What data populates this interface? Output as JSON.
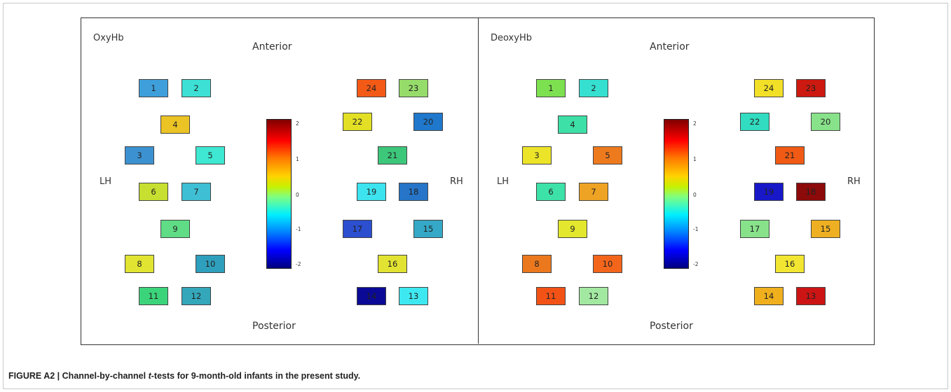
{
  "caption": {
    "prefix": "FIGURE A2 | Channel-by-channel ",
    "italic": "t",
    "suffix": "-tests for 9-month-old infants in the present study."
  },
  "labels": {
    "anterior": "Anterior",
    "posterior": "Posterior",
    "left_hemisphere": "LH",
    "right_hemisphere": "RH"
  },
  "colorbar": {
    "ticks": [
      "2",
      "1",
      "0",
      "-1",
      "-2"
    ],
    "range": [
      -2,
      2
    ],
    "colormap": "jet"
  },
  "panels": [
    {
      "title": "OxyHb",
      "channels": [
        {
          "id": "1",
          "color": "#3f9fdb"
        },
        {
          "id": "2",
          "color": "#3de0d4"
        },
        {
          "id": "4",
          "color": "#ecc324"
        },
        {
          "id": "3",
          "color": "#3c92d1"
        },
        {
          "id": "5",
          "color": "#3ee8d2"
        },
        {
          "id": "6",
          "color": "#c6df30"
        },
        {
          "id": "7",
          "color": "#3fbfd4"
        },
        {
          "id": "9",
          "color": "#5fdc85"
        },
        {
          "id": "8",
          "color": "#e1e431"
        },
        {
          "id": "10",
          "color": "#2e9fbc"
        },
        {
          "id": "11",
          "color": "#3cd47a"
        },
        {
          "id": "12",
          "color": "#34a7bb"
        },
        {
          "id": "24",
          "color": "#f35a16"
        },
        {
          "id": "23",
          "color": "#96dc6a"
        },
        {
          "id": "22",
          "color": "#e2df25"
        },
        {
          "id": "20",
          "color": "#1f78cc"
        },
        {
          "id": "21",
          "color": "#3cc77a"
        },
        {
          "id": "19",
          "color": "#3de3ee"
        },
        {
          "id": "18",
          "color": "#2675c8"
        },
        {
          "id": "17",
          "color": "#2b4fcf"
        },
        {
          "id": "15",
          "color": "#35a8c7"
        },
        {
          "id": "16",
          "color": "#e2e232"
        },
        {
          "id": "14",
          "color": "#0a0a96"
        },
        {
          "id": "13",
          "color": "#3ee8f0"
        }
      ]
    },
    {
      "title": "DeoxyHb",
      "channels": [
        {
          "id": "1",
          "color": "#7de050"
        },
        {
          "id": "2",
          "color": "#36e0d0"
        },
        {
          "id": "4",
          "color": "#3de0a6"
        },
        {
          "id": "3",
          "color": "#ece428"
        },
        {
          "id": "5",
          "color": "#ee7a1e"
        },
        {
          "id": "6",
          "color": "#3de2a8"
        },
        {
          "id": "7",
          "color": "#eea324"
        },
        {
          "id": "9",
          "color": "#e3e82e"
        },
        {
          "id": "8",
          "color": "#eb781d"
        },
        {
          "id": "10",
          "color": "#f3651a"
        },
        {
          "id": "11",
          "color": "#f25216"
        },
        {
          "id": "12",
          "color": "#a2e8a0"
        },
        {
          "id": "24",
          "color": "#f2e028"
        },
        {
          "id": "23",
          "color": "#cc1a10"
        },
        {
          "id": "22",
          "color": "#32dcc0"
        },
        {
          "id": "20",
          "color": "#88e28a"
        },
        {
          "id": "21",
          "color": "#f05a14"
        },
        {
          "id": "19",
          "color": "#1818c8"
        },
        {
          "id": "18",
          "color": "#8c0a0a"
        },
        {
          "id": "17",
          "color": "#88e28a"
        },
        {
          "id": "15",
          "color": "#eeb022"
        },
        {
          "id": "16",
          "color": "#f2e632"
        },
        {
          "id": "14",
          "color": "#f0b01e"
        },
        {
          "id": "13",
          "color": "#cc1414"
        }
      ]
    }
  ]
}
